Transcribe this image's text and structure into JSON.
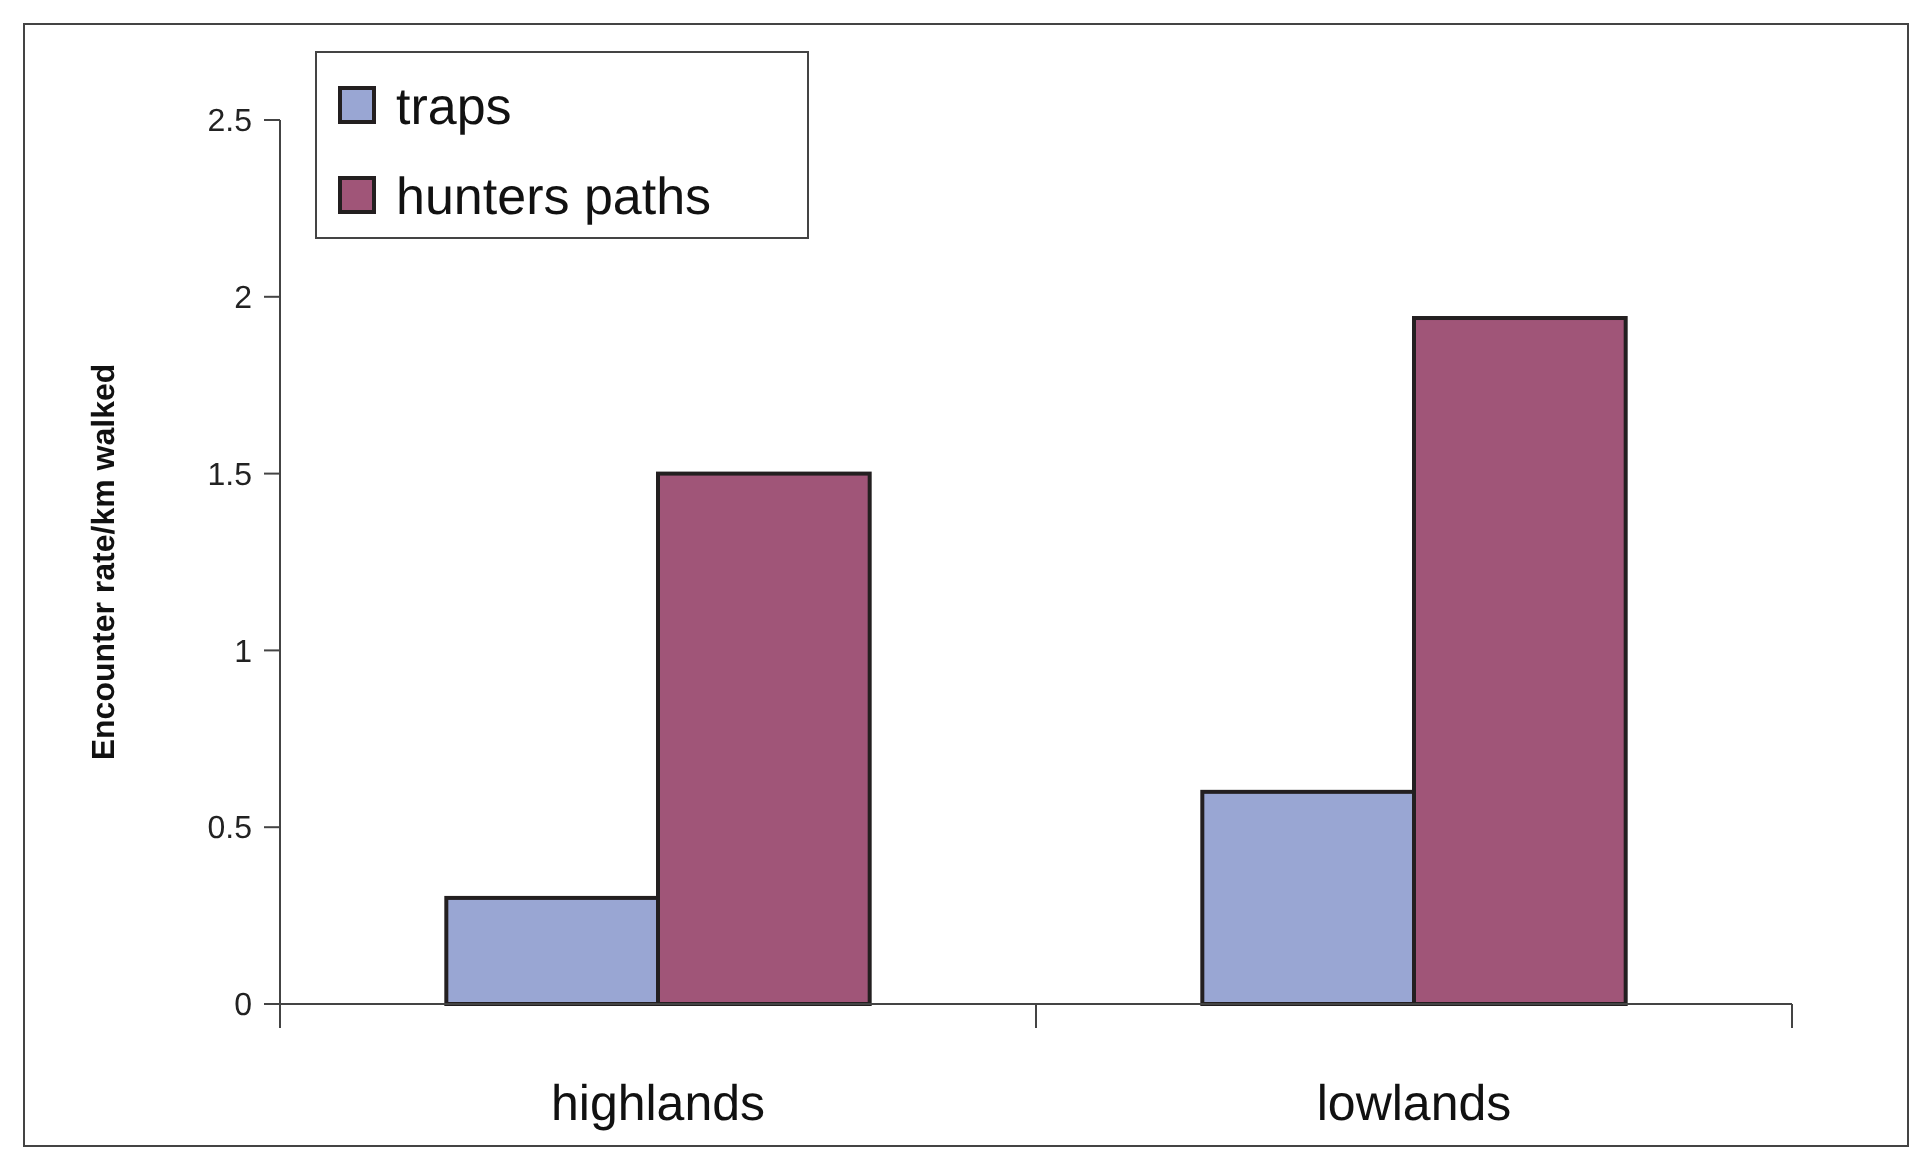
{
  "chart_data": {
    "type": "bar",
    "ylabel": "Encounter rate/km walked",
    "categories": [
      "highlands",
      "lowlands"
    ],
    "series": [
      {
        "name": "traps",
        "color": "#99a6d3",
        "values": [
          0.3,
          0.6
        ]
      },
      {
        "name": "hunters paths",
        "color": "#a05578",
        "values": [
          1.5,
          1.94
        ]
      }
    ],
    "ylim": [
      0,
      2.5
    ],
    "yticks": [
      0,
      0.5,
      1,
      1.5,
      2,
      2.5
    ],
    "grid": false,
    "legend": "top left"
  }
}
